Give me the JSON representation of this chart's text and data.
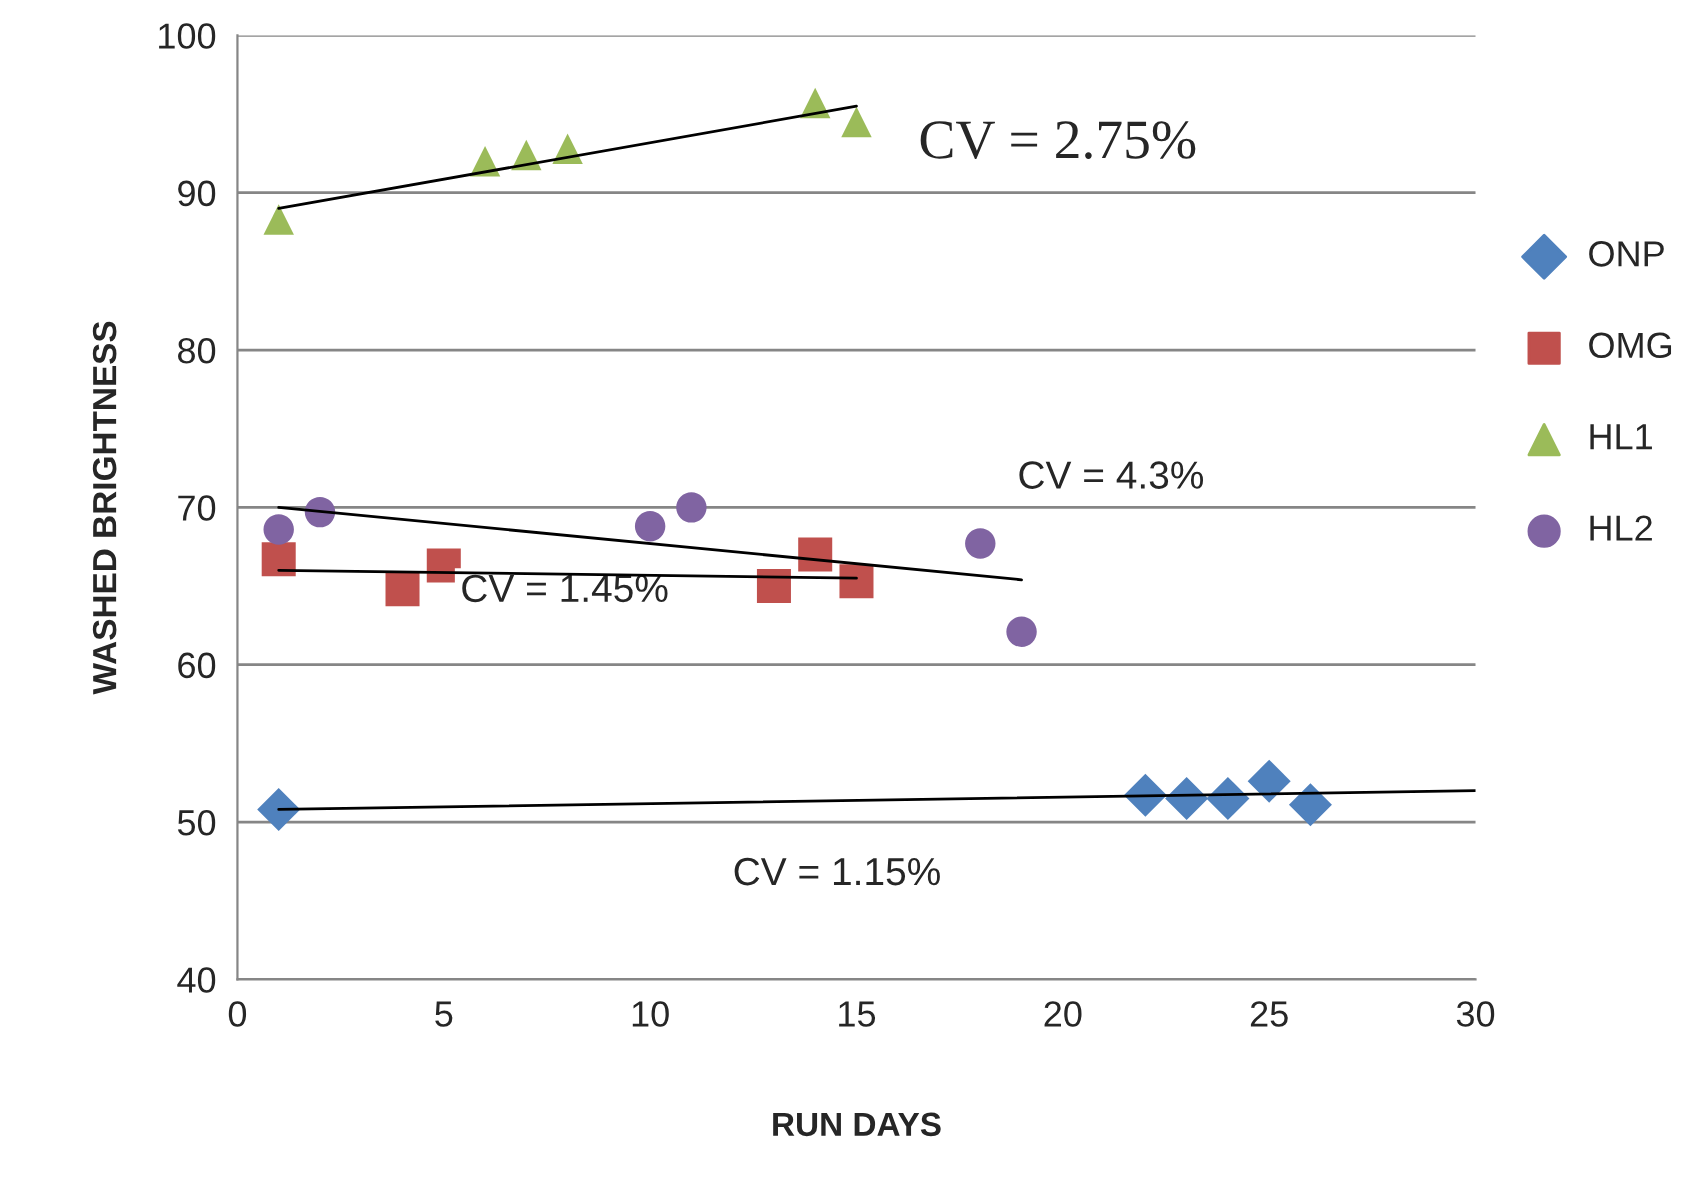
{
  "chart_data": {
    "type": "scatter",
    "xlabel": "RUN DAYS",
    "ylabel": "WASHED BRIGHTNESS",
    "xlim": [
      0,
      30
    ],
    "xticks": [
      0,
      5,
      10,
      15,
      20,
      25,
      30
    ],
    "ylim": [
      40,
      100
    ],
    "yticks": [
      40,
      50,
      60,
      70,
      80,
      90,
      100
    ],
    "grid": "y",
    "legend": "right",
    "series": [
      {
        "name": "ONP",
        "color": "#4f81bd",
        "marker": "diamond",
        "x": [
          1,
          22,
          23,
          24,
          25,
          26
        ],
        "values": [
          50.8,
          51.7,
          51.5,
          51.5,
          52.6,
          51.1
        ]
      },
      {
        "name": "OMG",
        "color": "#c0504d",
        "marker": "square",
        "x": [
          1,
          4,
          5,
          13,
          14,
          15
        ],
        "values": [
          66.7,
          64.8,
          66.3,
          65.0,
          67.0,
          65.3
        ]
      },
      {
        "name": "HL1",
        "color": "#9bbb59",
        "marker": "triangle",
        "x": [
          1,
          6,
          7,
          8,
          14,
          15
        ],
        "values": [
          88.3,
          92.0,
          92.4,
          92.8,
          95.7,
          94.5
        ]
      },
      {
        "name": "HL2",
        "color": "#8064a2",
        "marker": "circle",
        "x": [
          1,
          2,
          10,
          11,
          18,
          19
        ],
        "values": [
          68.6,
          69.7,
          68.8,
          70.0,
          67.7,
          62.1
        ]
      },
      {
        "type": "line",
        "color": "#000000",
        "x": [
          1,
          30
        ],
        "values": [
          50.8,
          52.0
        ]
      },
      {
        "type": "line",
        "color": "#000000",
        "x": [
          1,
          15
        ],
        "values": [
          66.0,
          65.5
        ]
      },
      {
        "type": "line",
        "color": "#000000",
        "x": [
          1,
          15
        ],
        "values": [
          89.0,
          95.5
        ]
      },
      {
        "type": "line",
        "color": "#000000",
        "x": [
          1,
          19
        ],
        "values": [
          70.0,
          65.4
        ]
      }
    ],
    "annotations": [
      "CV = 2.75%",
      "CV = 4.3%",
      "CV = 1.45%",
      "CV = 1.15%"
    ]
  }
}
